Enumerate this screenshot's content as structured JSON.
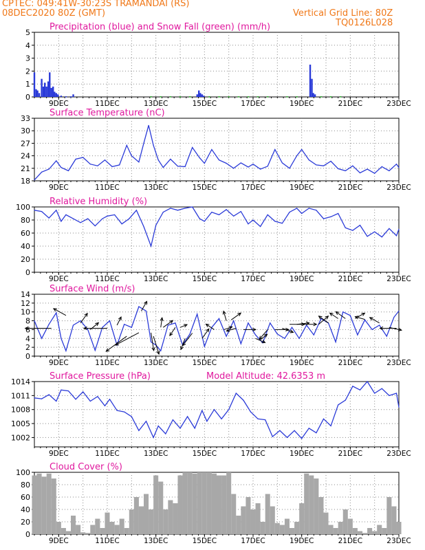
{
  "header": {
    "left_line1": "CPTEC:  049:41W-30:23S  TRAMANDAI (RS)",
    "left_line2": "08DEC2020 80Z (GMT)",
    "right_line1": "Vertical Grid Line: 80Z",
    "right_line2": "TQ0126L028"
  },
  "colors": {
    "header_text": "#f07818",
    "panel_title": "#e0189e",
    "line": "#2a3ad8",
    "snow": "#22a822",
    "cloud": "#a8a8a8",
    "arrow": "#000000",
    "grid": "#888888"
  },
  "x_axis": {
    "start_day": 8,
    "end_day": 23,
    "ticks": [
      {
        "day": 9,
        "label": "9DEC"
      },
      {
        "day": 11,
        "label": "11DEC"
      },
      {
        "day": 13,
        "label": "13DEC"
      },
      {
        "day": 15,
        "label": "15DEC"
      },
      {
        "day": 17,
        "label": "17DEC"
      },
      {
        "day": 19,
        "label": "19DEC"
      },
      {
        "day": 21,
        "label": "21DEC"
      },
      {
        "day": 23,
        "label": "23DEC"
      }
    ]
  },
  "chart_data": [
    {
      "type": "bar",
      "title": "Precipitation (blue) and Snow Fall (green) (mm/h)",
      "ylim": [
        0,
        5
      ],
      "yticks": [
        0,
        1,
        2,
        3,
        4,
        5
      ],
      "series": [
        {
          "name": "Precipitation",
          "color": "blue",
          "points": [
            [
              8.0,
              1.9
            ],
            [
              8.07,
              0.6
            ],
            [
              8.13,
              0.5
            ],
            [
              8.2,
              0.3
            ],
            [
              8.3,
              1.4
            ],
            [
              8.37,
              0.8
            ],
            [
              8.43,
              1.1
            ],
            [
              8.5,
              0.8
            ],
            [
              8.57,
              1.2
            ],
            [
              8.63,
              1.9
            ],
            [
              8.7,
              0.7
            ],
            [
              8.77,
              0.8
            ],
            [
              8.83,
              0.4
            ],
            [
              8.9,
              0.3
            ],
            [
              8.97,
              0.2
            ],
            [
              9.1,
              0.1
            ],
            [
              9.3,
              0.05
            ],
            [
              9.5,
              0.05
            ],
            [
              9.6,
              0.2
            ],
            [
              14.7,
              0.2
            ],
            [
              14.77,
              0.5
            ],
            [
              14.83,
              0.3
            ],
            [
              14.9,
              0.2
            ],
            [
              14.97,
              0.1
            ],
            [
              19.35,
              2.5
            ],
            [
              19.42,
              1.4
            ],
            [
              19.48,
              0.3
            ],
            [
              19.55,
              0.2
            ]
          ]
        },
        {
          "name": "Snow Fall",
          "color": "green",
          "points": [
            [
              12.8,
              0.05
            ],
            [
              13.2,
              0.05
            ],
            [
              13.6,
              0.05
            ],
            [
              14.0,
              0.05
            ],
            [
              14.4,
              0.05
            ],
            [
              15.2,
              0.05
            ],
            [
              15.6,
              0.05
            ],
            [
              16.0,
              0.05
            ],
            [
              16.4,
              0.05
            ],
            [
              16.8,
              0.05
            ],
            [
              17.2,
              0.05
            ],
            [
              17.6,
              0.05
            ],
            [
              18.4,
              0.05
            ],
            [
              18.8,
              0.05
            ],
            [
              19.8,
              0.05
            ],
            [
              20.2,
              0.05
            ],
            [
              20.6,
              0.05
            ]
          ]
        }
      ]
    },
    {
      "type": "line",
      "title": "Surface Temperature (nC)",
      "ylim": [
        18,
        33
      ],
      "yticks": [
        18,
        21,
        24,
        27,
        30,
        33
      ],
      "x": [
        8.0,
        8.3,
        8.6,
        8.9,
        9.1,
        9.4,
        9.7,
        10.0,
        10.3,
        10.6,
        10.9,
        11.2,
        11.5,
        11.8,
        12.0,
        12.3,
        12.5,
        12.7,
        12.9,
        13.1,
        13.3,
        13.6,
        13.9,
        14.2,
        14.5,
        14.8,
        15.0,
        15.3,
        15.6,
        15.9,
        16.2,
        16.5,
        16.8,
        17.0,
        17.3,
        17.6,
        17.9,
        18.2,
        18.5,
        18.8,
        19.0,
        19.3,
        19.6,
        19.9,
        20.2,
        20.5,
        20.8,
        21.1,
        21.4,
        21.7,
        22.0,
        22.3,
        22.6,
        22.9,
        23.0
      ],
      "y": [
        18.2,
        20.1,
        20.8,
        22.8,
        21.2,
        20.4,
        23.2,
        23.6,
        22.0,
        21.6,
        23.0,
        21.4,
        21.8,
        26.5,
        24.0,
        22.5,
        27.0,
        31.3,
        26.5,
        23.0,
        21.2,
        23.2,
        21.5,
        21.4,
        26.0,
        23.5,
        22.2,
        25.5,
        23.0,
        22.2,
        21.0,
        22.3,
        21.3,
        22.0,
        20.8,
        21.5,
        25.5,
        22.3,
        21.0,
        24.0,
        25.5,
        23.0,
        21.8,
        21.6,
        22.7,
        20.9,
        20.4,
        21.6,
        19.9,
        20.8,
        19.8,
        21.4,
        20.4,
        22.0,
        21.2
      ]
    },
    {
      "type": "line",
      "title": "Relative Humidity (%)",
      "ylim": [
        0,
        100
      ],
      "yticks": [
        0,
        20,
        40,
        60,
        80,
        100
      ],
      "x": [
        8.0,
        8.3,
        8.6,
        8.9,
        9.1,
        9.3,
        9.6,
        9.9,
        10.2,
        10.5,
        10.8,
        11.0,
        11.3,
        11.6,
        11.9,
        12.2,
        12.5,
        12.8,
        13.0,
        13.3,
        13.6,
        13.9,
        14.2,
        14.5,
        14.8,
        15.0,
        15.3,
        15.6,
        15.9,
        16.2,
        16.5,
        16.8,
        17.0,
        17.3,
        17.6,
        17.9,
        18.2,
        18.5,
        18.8,
        19.0,
        19.3,
        19.6,
        19.9,
        20.2,
        20.5,
        20.8,
        21.1,
        21.4,
        21.7,
        22.0,
        22.3,
        22.6,
        22.9,
        23.0
      ],
      "y": [
        95,
        93,
        83,
        95,
        78,
        88,
        82,
        76,
        82,
        71,
        82,
        86,
        88,
        74,
        82,
        95,
        70,
        40,
        72,
        92,
        98,
        95,
        98,
        100,
        82,
        78,
        92,
        88,
        96,
        86,
        93,
        74,
        80,
        70,
        88,
        78,
        75,
        92,
        98,
        90,
        98,
        95,
        82,
        85,
        90,
        68,
        64,
        72,
        55,
        62,
        54,
        67,
        56,
        66
      ]
    },
    {
      "type": "line",
      "title": "Surface Wind (m/s)",
      "ylim": [
        0,
        14
      ],
      "yticks": [
        0,
        2,
        4,
        6,
        8,
        10,
        12,
        14
      ],
      "x": [
        8.0,
        8.3,
        8.6,
        8.9,
        9.1,
        9.3,
        9.6,
        9.9,
        10.2,
        10.5,
        10.8,
        11.1,
        11.4,
        11.7,
        12.0,
        12.3,
        12.6,
        12.8,
        13.0,
        13.2,
        13.5,
        13.8,
        14.1,
        14.4,
        14.7,
        15.0,
        15.3,
        15.6,
        15.9,
        16.2,
        16.5,
        16.8,
        17.1,
        17.4,
        17.7,
        18.0,
        18.3,
        18.6,
        18.9,
        19.2,
        19.5,
        19.8,
        20.1,
        20.4,
        20.7,
        21.0,
        21.3,
        21.6,
        21.9,
        22.2,
        22.5,
        22.8,
        23.0
      ],
      "y": [
        8.0,
        4.0,
        7.2,
        9.8,
        4.0,
        1.2,
        7.0,
        8.0,
        6.0,
        1.3,
        6.5,
        8.0,
        2.5,
        7.2,
        6.5,
        11.2,
        10.2,
        3.2,
        2.5,
        1.2,
        7.0,
        7.5,
        2.5,
        5.0,
        9.5,
        2.2,
        6.5,
        8.5,
        4.5,
        8.0,
        2.8,
        7.5,
        4.8,
        3.0,
        7.5,
        5.0,
        4.0,
        6.5,
        4.0,
        7.0,
        4.8,
        8.5,
        7.5,
        3.2,
        10.0,
        9.2,
        4.8,
        8.2,
        6.0,
        7.0,
        4.5,
        8.8,
        10.2
      ],
      "vectors": [
        {
          "x": 8.7,
          "y": 6.3,
          "dx": -38,
          "dy": 0
        },
        {
          "x": 9.3,
          "y": 9.2,
          "dx": -18,
          "dy": -10
        },
        {
          "x": 9.9,
          "y": 7.5,
          "dx": 10,
          "dy": -14
        },
        {
          "x": 10.3,
          "y": 6.0,
          "dx": 12,
          "dy": -10
        },
        {
          "x": 11.0,
          "y": 6.3,
          "dx": -34,
          "dy": 0
        },
        {
          "x": 11.4,
          "y": 7.0,
          "dx": 6,
          "dy": -12
        },
        {
          "x": 11.8,
          "y": 4.5,
          "dx": -30,
          "dy": 22
        },
        {
          "x": 12.3,
          "y": 5.3,
          "dx": -34,
          "dy": 18
        },
        {
          "x": 12.4,
          "y": 10.2,
          "dx": 8,
          "dy": -14
        },
        {
          "x": 12.8,
          "y": 5.3,
          "dx": 4,
          "dy": 26
        },
        {
          "x": 12.9,
          "y": 4.5,
          "dx": 8,
          "dy": 26
        },
        {
          "x": 13.2,
          "y": 6.5,
          "dx": 2,
          "dy": -14
        },
        {
          "x": 13.3,
          "y": 6.5,
          "dx": 14,
          "dy": -10
        },
        {
          "x": 13.8,
          "y": 6.5,
          "dx": -8,
          "dy": 12
        },
        {
          "x": 14.0,
          "y": 6.5,
          "dx": 10,
          "dy": -4
        },
        {
          "x": 14.2,
          "y": 4.0,
          "dx": -6,
          "dy": 16
        },
        {
          "x": 14.5,
          "y": 5.2,
          "dx": -14,
          "dy": 18
        },
        {
          "x": 14.9,
          "y": 4.0,
          "dx": 10,
          "dy": -14
        },
        {
          "x": 15.4,
          "y": 6.0,
          "dx": -12,
          "dy": -8
        },
        {
          "x": 15.8,
          "y": 6.0,
          "dx": 12,
          "dy": -4
        },
        {
          "x": 15.9,
          "y": 8.0,
          "dx": -4,
          "dy": -14
        },
        {
          "x": 16.1,
          "y": 8.2,
          "dx": 14,
          "dy": -10
        },
        {
          "x": 16.3,
          "y": 6.3,
          "dx": -14,
          "dy": 4
        },
        {
          "x": 16.6,
          "y": 6.0,
          "dx": 18,
          "dy": 0
        },
        {
          "x": 17.1,
          "y": 4.0,
          "dx": 14,
          "dy": 6
        },
        {
          "x": 17.3,
          "y": 3.7,
          "dx": 10,
          "dy": -8
        },
        {
          "x": 17.6,
          "y": 6.0,
          "dx": -12,
          "dy": 14
        },
        {
          "x": 17.9,
          "y": 6.0,
          "dx": 20,
          "dy": 0
        },
        {
          "x": 18.2,
          "y": 6.3,
          "dx": 16,
          "dy": 6
        },
        {
          "x": 18.5,
          "y": 7.2,
          "dx": 22,
          "dy": 0
        },
        {
          "x": 18.8,
          "y": 7.2,
          "dx": 18,
          "dy": -2
        },
        {
          "x": 19.1,
          "y": 7.2,
          "dx": 18,
          "dy": 0
        },
        {
          "x": 19.7,
          "y": 7.2,
          "dx": 14,
          "dy": -12
        },
        {
          "x": 20.1,
          "y": 7.5,
          "dx": -14,
          "dy": -10
        },
        {
          "x": 20.5,
          "y": 8.5,
          "dx": -12,
          "dy": -8
        },
        {
          "x": 20.8,
          "y": 8.5,
          "dx": -14,
          "dy": -10
        },
        {
          "x": 21.2,
          "y": 8.5,
          "dx": 14,
          "dy": -8
        },
        {
          "x": 21.6,
          "y": 8.3,
          "dx": -14,
          "dy": -4
        },
        {
          "x": 22.2,
          "y": 7.5,
          "dx": -14,
          "dy": -8
        },
        {
          "x": 22.6,
          "y": 6.5,
          "dx": 18,
          "dy": 4
        },
        {
          "x": 22.9,
          "y": 6.3,
          "dx": -24,
          "dy": 0
        }
      ]
    },
    {
      "type": "line",
      "title": "Surface Pressure (hPa)",
      "annotation": "Model Altitude: 42.6353 m",
      "ylim": [
        1000,
        1014
      ],
      "yticks": [
        1002,
        1005,
        1008,
        1011,
        1014
      ],
      "x": [
        8.0,
        8.3,
        8.6,
        8.9,
        9.1,
        9.4,
        9.7,
        10.0,
        10.3,
        10.6,
        10.9,
        11.1,
        11.4,
        11.7,
        12.0,
        12.3,
        12.6,
        12.9,
        13.1,
        13.4,
        13.7,
        14.0,
        14.3,
        14.6,
        14.9,
        15.1,
        15.4,
        15.7,
        16.0,
        16.3,
        16.6,
        16.9,
        17.2,
        17.5,
        17.8,
        18.1,
        18.4,
        18.7,
        19.0,
        19.3,
        19.6,
        19.9,
        20.2,
        20.5,
        20.8,
        21.1,
        21.4,
        21.7,
        22.0,
        22.3,
        22.6,
        22.9,
        23.0
      ],
      "y": [
        1010.5,
        1010.3,
        1011.2,
        1009.8,
        1012.2,
        1012.0,
        1010.2,
        1011.8,
        1009.8,
        1010.8,
        1008.8,
        1010.2,
        1007.8,
        1007.5,
        1006.5,
        1003.5,
        1005.5,
        1002.0,
        1004.5,
        1002.8,
        1005.8,
        1004.0,
        1006.5,
        1004.0,
        1007.8,
        1005.5,
        1008.0,
        1006.0,
        1008.0,
        1011.5,
        1010.0,
        1007.5,
        1006.0,
        1005.8,
        1002.2,
        1003.5,
        1002.0,
        1003.5,
        1001.8,
        1004.0,
        1003.0,
        1006.0,
        1004.5,
        1009.0,
        1010.0,
        1013.0,
        1012.2,
        1014.0,
        1011.5,
        1012.5,
        1011.0,
        1011.5,
        1008.5
      ]
    },
    {
      "type": "bar",
      "title": "Cloud Cover (%)",
      "ylim": [
        0,
        100
      ],
      "yticks": [
        0,
        20,
        40,
        60,
        80,
        100
      ],
      "x": [
        8.0,
        8.2,
        8.4,
        8.6,
        8.8,
        9.0,
        9.2,
        9.4,
        9.6,
        9.8,
        10.0,
        10.2,
        10.4,
        10.6,
        10.8,
        11.0,
        11.2,
        11.4,
        11.6,
        11.8,
        12.0,
        12.2,
        12.4,
        12.6,
        12.8,
        13.0,
        13.2,
        13.4,
        13.6,
        13.8,
        14.0,
        14.2,
        14.4,
        14.6,
        14.8,
        15.0,
        15.2,
        15.4,
        15.6,
        15.8,
        16.0,
        16.2,
        16.4,
        16.6,
        16.8,
        17.0,
        17.2,
        17.4,
        17.6,
        17.8,
        18.0,
        18.2,
        18.4,
        18.6,
        18.8,
        19.0,
        19.2,
        19.4,
        19.6,
        19.8,
        20.0,
        20.2,
        20.4,
        20.6,
        20.8,
        21.0,
        21.2,
        21.4,
        21.6,
        21.8,
        22.0,
        22.2,
        22.4,
        22.6,
        22.8,
        23.0
      ],
      "values": [
        95,
        98,
        93,
        98,
        90,
        20,
        10,
        5,
        30,
        15,
        3,
        2,
        15,
        25,
        10,
        35,
        20,
        15,
        25,
        10,
        40,
        60,
        45,
        65,
        40,
        95,
        85,
        40,
        55,
        50,
        95,
        100,
        100,
        98,
        100,
        100,
        100,
        98,
        95,
        95,
        100,
        65,
        30,
        45,
        60,
        40,
        50,
        20,
        65,
        45,
        18,
        15,
        25,
        10,
        20,
        50,
        98,
        95,
        90,
        60,
        35,
        15,
        10,
        20,
        40,
        25,
        10,
        5,
        2,
        10,
        5,
        15,
        10,
        60,
        45,
        20
      ]
    }
  ]
}
